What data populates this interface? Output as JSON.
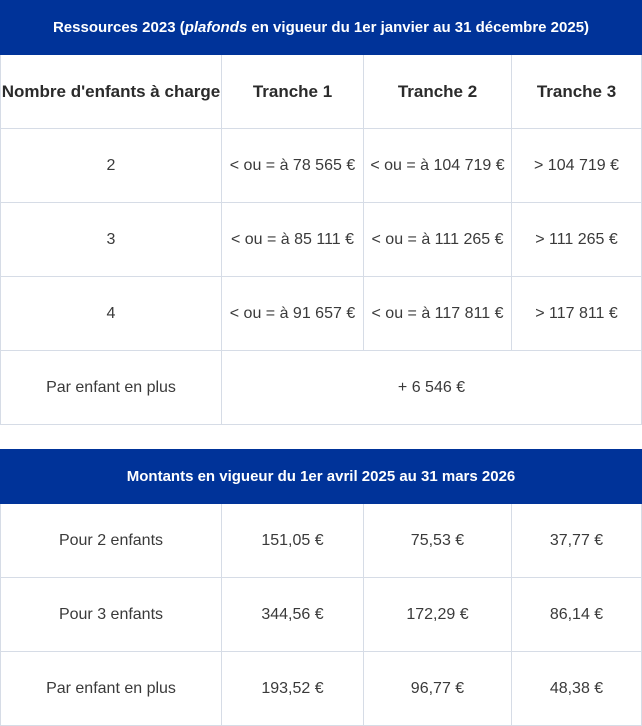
{
  "table1": {
    "banner_prefix": "Ressources 2023 (",
    "banner_italic": "plafonds",
    "banner_suffix": " en vigueur du 1er janvier au 31 décembre 2025)",
    "headers": [
      "Nombre d'enfants à charge",
      "Tranche 1",
      "Tranche 2",
      "Tranche 3"
    ],
    "rows": [
      [
        "2",
        "< ou = à 78 565 €",
        "< ou = à 104 719 €",
        "> 104 719 €"
      ],
      [
        "3",
        "< ou = à 85 111 €",
        "< ou = à 111 265 €",
        "> 111 265 €"
      ],
      [
        "4",
        "< ou = à 91 657 €",
        "< ou = à 117 811 €",
        "> 117 811 €"
      ]
    ],
    "extra_row": {
      "label": "Par enfant en plus",
      "value": "+ 6 546 €"
    }
  },
  "table2": {
    "banner": "Montants en vigueur du 1er avril 2025 au 31 mars 2026",
    "rows": [
      [
        "Pour 2 enfants",
        "151,05 €",
        "75,53 €",
        "37,77 €"
      ],
      [
        "Pour 3 enfants",
        "344,56 €",
        "172,29 €",
        "86,14 €"
      ],
      [
        "Par enfant en plus",
        "193,52 €",
        "96,77 €",
        "48,38 €"
      ]
    ]
  },
  "colors": {
    "banner": "#003399",
    "border": "#d6dce6"
  }
}
